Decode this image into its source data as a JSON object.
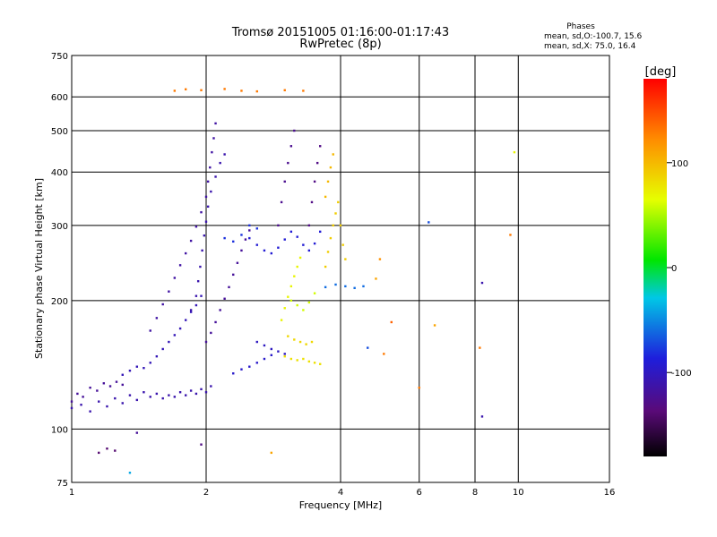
{
  "chart_data": {
    "type": "scatter",
    "title": "Tromsø 20151005 01:16:00-01:17:43",
    "subtitle": "RwPretec (8p)",
    "xlabel": "Frequency [MHz]",
    "ylabel": "Stationary phase Virtual Height [km]",
    "x_scale": "log",
    "y_scale": "log",
    "xlim": [
      1,
      16
    ],
    "ylim": [
      75,
      750
    ],
    "x_ticks": [
      1,
      2,
      4,
      6,
      8,
      10,
      16
    ],
    "y_ticks": [
      75,
      100,
      200,
      300,
      400,
      500,
      600,
      750
    ],
    "grid": true,
    "stats": {
      "heading": "Phases",
      "line_o": "mean, sd,O:-100.7, 15.6",
      "line_x": "mean, sd,X:  75.0, 16.4"
    },
    "colorbar": {
      "label": "[deg]",
      "range": [
        -180,
        180
      ],
      "ticks": [
        100,
        0,
        -100
      ],
      "tick_labels": [
        "100",
        "0",
        "-100"
      ]
    },
    "colors": {
      "o_mode": "#2828d8",
      "x_mode": "#b4e614",
      "grid": "#000000"
    },
    "series": [
      {
        "traces": [
          {
            "phase": -110,
            "points": [
              [
                1.0,
                112
              ],
              [
                1.05,
                114
              ],
              [
                1.1,
                110
              ],
              [
                1.15,
                116
              ],
              [
                1.2,
                113
              ],
              [
                1.25,
                118
              ],
              [
                1.3,
                115
              ],
              [
                1.35,
                120
              ],
              [
                1.4,
                117
              ],
              [
                1.45,
                122
              ],
              [
                1.5,
                119
              ],
              [
                1.55,
                121
              ],
              [
                1.6,
                118
              ],
              [
                1.65,
                120
              ],
              [
                1.7,
                119
              ],
              [
                1.75,
                122
              ],
              [
                1.8,
                120
              ],
              [
                1.85,
                123
              ],
              [
                1.9,
                121
              ],
              [
                1.95,
                124
              ],
              [
                2.0,
                122
              ],
              [
                2.05,
                126
              ]
            ]
          },
          {
            "phase": -120,
            "points": [
              [
                1.0,
                116
              ],
              [
                1.03,
                121
              ],
              [
                1.06,
                119
              ],
              [
                1.1,
                125
              ],
              [
                1.14,
                123
              ],
              [
                1.18,
                128
              ],
              [
                1.22,
                126
              ],
              [
                1.26,
                129
              ],
              [
                1.3,
                127
              ]
            ]
          },
          {
            "phase": -105,
            "points": [
              [
                1.3,
                134
              ],
              [
                1.35,
                137
              ],
              [
                1.4,
                140
              ],
              [
                1.45,
                139
              ],
              [
                1.5,
                143
              ],
              [
                1.55,
                148
              ],
              [
                1.6,
                154
              ],
              [
                1.65,
                160
              ],
              [
                1.7,
                166
              ],
              [
                1.75,
                172
              ],
              [
                1.8,
                180
              ],
              [
                1.85,
                188
              ],
              [
                1.9,
                195
              ],
              [
                1.95,
                205
              ]
            ]
          },
          {
            "phase": -115,
            "points": [
              [
                1.5,
                170
              ],
              [
                1.55,
                182
              ],
              [
                1.6,
                196
              ],
              [
                1.65,
                210
              ],
              [
                1.7,
                226
              ],
              [
                1.75,
                242
              ],
              [
                1.8,
                258
              ],
              [
                1.85,
                276
              ],
              [
                1.9,
                298
              ],
              [
                1.95,
                322
              ],
              [
                2.0,
                350
              ],
              [
                2.02,
                380
              ],
              [
                2.04,
                410
              ],
              [
                2.06,
                445
              ],
              [
                2.08,
                480
              ],
              [
                2.1,
                520
              ]
            ]
          },
          {
            "phase": -110,
            "points": [
              [
                1.85,
                190
              ],
              [
                1.9,
                205
              ],
              [
                1.92,
                222
              ],
              [
                1.94,
                240
              ],
              [
                1.96,
                262
              ],
              [
                1.98,
                284
              ],
              [
                2.0,
                306
              ],
              [
                2.02,
                332
              ],
              [
                2.05,
                360
              ],
              [
                2.1,
                390
              ],
              [
                2.15,
                420
              ],
              [
                2.2,
                440
              ]
            ]
          },
          {
            "phase": -120,
            "points": [
              [
                2.0,
                160
              ],
              [
                2.05,
                168
              ],
              [
                2.1,
                178
              ],
              [
                2.15,
                190
              ],
              [
                2.2,
                202
              ],
              [
                2.25,
                215
              ],
              [
                2.3,
                230
              ],
              [
                2.35,
                245
              ],
              [
                2.4,
                262
              ],
              [
                2.45,
                278
              ],
              [
                2.5,
                292
              ]
            ]
          },
          {
            "phase": -90,
            "points": [
              [
                2.5,
                280
              ],
              [
                2.6,
                270
              ],
              [
                2.7,
                262
              ],
              [
                2.8,
                258
              ],
              [
                2.9,
                266
              ],
              [
                3.0,
                278
              ],
              [
                3.1,
                290
              ],
              [
                3.2,
                282
              ],
              [
                3.3,
                270
              ],
              [
                3.4,
                262
              ],
              [
                3.5,
                272
              ],
              [
                3.6,
                290
              ]
            ]
          },
          {
            "phase": -125,
            "points": [
              [
                2.9,
                300
              ],
              [
                2.95,
                340
              ],
              [
                3.0,
                380
              ],
              [
                3.05,
                420
              ],
              [
                3.1,
                460
              ],
              [
                3.15,
                500
              ]
            ]
          },
          {
            "phase": -130,
            "points": [
              [
                3.4,
                300
              ],
              [
                3.45,
                340
              ],
              [
                3.5,
                380
              ],
              [
                3.55,
                420
              ],
              [
                3.6,
                460
              ]
            ]
          },
          {
            "phase": -100,
            "points": [
              [
                2.6,
                160
              ],
              [
                2.7,
                157
              ],
              [
                2.8,
                154
              ],
              [
                2.9,
                152
              ],
              [
                3.0,
                150
              ]
            ]
          },
          {
            "phase": -95,
            "points": [
              [
                2.3,
                135
              ],
              [
                2.4,
                138
              ],
              [
                2.5,
                140
              ],
              [
                2.6,
                143
              ],
              [
                2.7,
                146
              ],
              [
                2.8,
                149
              ]
            ]
          },
          {
            "phase": 80,
            "points": [
              [
                3.0,
                148
              ],
              [
                3.1,
                146
              ],
              [
                3.2,
                145
              ],
              [
                3.3,
                146
              ],
              [
                3.4,
                144
              ],
              [
                3.5,
                143
              ],
              [
                3.6,
                142
              ]
            ]
          },
          {
            "phase": 85,
            "points": [
              [
                3.05,
                165
              ],
              [
                3.15,
                162
              ],
              [
                3.25,
                160
              ],
              [
                3.35,
                158
              ],
              [
                3.45,
                160
              ]
            ]
          },
          {
            "phase": 70,
            "points": [
              [
                2.95,
                180
              ],
              [
                3.0,
                192
              ],
              [
                3.05,
                204
              ],
              [
                3.1,
                216
              ],
              [
                3.15,
                228
              ],
              [
                3.2,
                240
              ],
              [
                3.25,
                252
              ]
            ]
          },
          {
            "phase": 60,
            "points": [
              [
                3.1,
                200
              ],
              [
                3.2,
                195
              ],
              [
                3.3,
                190
              ],
              [
                3.4,
                198
              ],
              [
                3.5,
                208
              ]
            ]
          },
          {
            "phase": 90,
            "points": [
              [
                3.7,
                240
              ],
              [
                3.75,
                260
              ],
              [
                3.8,
                280
              ],
              [
                3.85,
                300
              ],
              [
                3.9,
                320
              ],
              [
                3.95,
                340
              ],
              [
                4.0,
                300
              ],
              [
                4.05,
                270
              ],
              [
                4.1,
                250
              ]
            ]
          },
          {
            "phase": 100,
            "points": [
              [
                3.7,
                350
              ],
              [
                3.75,
                380
              ],
              [
                3.8,
                410
              ],
              [
                3.85,
                440
              ]
            ]
          },
          {
            "phase": -60,
            "points": [
              [
                3.7,
                215
              ],
              [
                3.9,
                218
              ],
              [
                4.1,
                216
              ],
              [
                4.3,
                214
              ],
              [
                4.5,
                216
              ]
            ]
          },
          {
            "phase": -80,
            "points": [
              [
                2.2,
                280
              ],
              [
                2.3,
                275
              ],
              [
                2.4,
                285
              ],
              [
                2.5,
                300
              ],
              [
                2.6,
                295
              ]
            ]
          },
          {
            "phase": 130,
            "points": [
              [
                1.7,
                620
              ],
              [
                1.8,
                625
              ],
              [
                1.95,
                622
              ],
              [
                2.2,
                626
              ],
              [
                2.4,
                620
              ],
              [
                2.6,
                618
              ],
              [
                3.0,
                622
              ],
              [
                3.3,
                620
              ]
            ]
          },
          {
            "phase": -140,
            "points": [
              [
                1.15,
                88
              ],
              [
                1.2,
                90
              ],
              [
                1.25,
                89
              ]
            ]
          }
        ]
      }
    ],
    "scatter_points": [
      {
        "x": 6.3,
        "y": 305,
        "phase": -70
      },
      {
        "x": 9.8,
        "y": 445,
        "phase": 70
      },
      {
        "x": 9.6,
        "y": 285,
        "phase": 130
      },
      {
        "x": 8.3,
        "y": 220,
        "phase": -110
      },
      {
        "x": 8.3,
        "y": 107,
        "phase": -110
      },
      {
        "x": 6.5,
        "y": 175,
        "phase": 110
      },
      {
        "x": 5.2,
        "y": 178,
        "phase": 140
      },
      {
        "x": 5.0,
        "y": 150,
        "phase": 130
      },
      {
        "x": 4.6,
        "y": 155,
        "phase": -70
      },
      {
        "x": 4.9,
        "y": 250,
        "phase": 120
      },
      {
        "x": 4.8,
        "y": 225,
        "phase": 110
      },
      {
        "x": 6.0,
        "y": 125,
        "phase": 130
      },
      {
        "x": 1.4,
        "y": 98,
        "phase": -120
      },
      {
        "x": 1.95,
        "y": 92,
        "phase": -130
      },
      {
        "x": 1.35,
        "y": 79,
        "phase": -40
      },
      {
        "x": 2.8,
        "y": 88,
        "phase": 110
      },
      {
        "x": 8.2,
        "y": 155,
        "phase": 130
      }
    ]
  }
}
